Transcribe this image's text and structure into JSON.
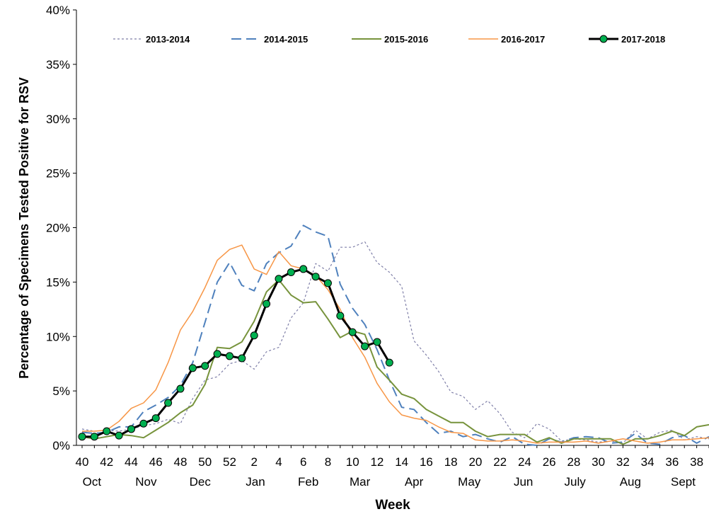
{
  "chart_data": {
    "type": "line",
    "xlabel": "Week",
    "ylabel": "Percentage of Specimens Tested Positive for RSV",
    "ylim": [
      0,
      40
    ],
    "yticks": [
      "0%",
      "5%",
      "10%",
      "15%",
      "20%",
      "25%",
      "30%",
      "35%",
      "40%"
    ],
    "grid": false,
    "legend_position": "top",
    "weeks": [
      40,
      41,
      42,
      43,
      44,
      45,
      46,
      47,
      48,
      49,
      50,
      51,
      52,
      1,
      2,
      3,
      4,
      5,
      6,
      7,
      8,
      9,
      10,
      11,
      12,
      13,
      14,
      15,
      16,
      17,
      18,
      19,
      20,
      21,
      22,
      23,
      24,
      25,
      26,
      27,
      28,
      29,
      30,
      31,
      32,
      33,
      34,
      35,
      36,
      37,
      38,
      39
    ],
    "xtick_labels": [
      "40",
      "42",
      "44",
      "46",
      "48",
      "50",
      "52",
      "2",
      "4",
      "6",
      "8",
      "10",
      "12",
      "14",
      "16",
      "18",
      "20",
      "22",
      "24",
      "26",
      "28",
      "30",
      "32",
      "34",
      "36",
      "38"
    ],
    "month_labels": [
      {
        "label": "Oct",
        "week_index": 0.8
      },
      {
        "label": "Nov",
        "week_index": 5.2
      },
      {
        "label": "Dec",
        "week_index": 9.6
      },
      {
        "label": "Jan",
        "week_index": 14.1
      },
      {
        "label": "Feb",
        "week_index": 18.4
      },
      {
        "label": "Mar",
        "week_index": 22.6
      },
      {
        "label": "Apr",
        "week_index": 27.0
      },
      {
        "label": "May",
        "week_index": 31.5
      },
      {
        "label": "Jun",
        "week_index": 35.9
      },
      {
        "label": "July",
        "week_index": 40.1
      },
      {
        "label": "Aug",
        "week_index": 44.6
      },
      {
        "label": "Sept",
        "week_index": 48.9
      }
    ],
    "series": [
      {
        "name": "2013-2014",
        "color": "#7f7fa8",
        "style": "dotted",
        "values": [
          1.5,
          1.3,
          1.4,
          1.3,
          1.5,
          1.8,
          2.0,
          2.4,
          2.0,
          4.3,
          6.0,
          6.3,
          7.5,
          7.8,
          7.0,
          8.6,
          9.0,
          11.7,
          13.1,
          16.7,
          16.0,
          18.2,
          18.2,
          18.7,
          16.8,
          15.9,
          14.6,
          9.6,
          8.3,
          6.8,
          4.9,
          4.5,
          3.3,
          4.1,
          2.9,
          1.2,
          0.7,
          2.0,
          1.5,
          0.4,
          0.6,
          0.5,
          0.3,
          0.4,
          0.2,
          1.4,
          0.6,
          1.2,
          1.4,
          0.5,
          0.8,
          0.6
        ]
      },
      {
        "name": "2014-2015",
        "color": "#4f81bd",
        "style": "dashed",
        "values": [
          1.2,
          1.1,
          1.2,
          1.7,
          1.7,
          3.1,
          3.7,
          4.4,
          5.5,
          7.6,
          11.3,
          15.0,
          16.8,
          14.7,
          14.2,
          16.7,
          17.7,
          18.3,
          20.2,
          19.6,
          19.2,
          14.8,
          12.6,
          11.1,
          8.8,
          6.0,
          3.5,
          3.3,
          2.1,
          1.1,
          1.3,
          0.8,
          1.0,
          0.6,
          0.3,
          0.8,
          0.1,
          0.0,
          0.6,
          0.3,
          0.7,
          0.8,
          0.7,
          0.2,
          0.3,
          1.1,
          0.2,
          0.1,
          0.7,
          0.9,
          0.2,
          0.8
        ]
      },
      {
        "name": "2015-2016",
        "color": "#77933c",
        "style": "solid",
        "values": [
          0.8,
          0.6,
          0.8,
          1.0,
          0.9,
          0.7,
          1.4,
          2.1,
          3.0,
          3.7,
          5.6,
          9.0,
          8.9,
          9.5,
          11.4,
          14.1,
          15.2,
          13.8,
          13.1,
          13.2,
          11.6,
          9.9,
          10.5,
          10.2,
          7.2,
          6.0,
          4.7,
          4.3,
          3.3,
          2.7,
          2.1,
          2.1,
          1.3,
          0.8,
          1.0,
          1.0,
          1.0,
          0.3,
          0.7,
          0.2,
          0.6,
          0.6,
          0.6,
          0.6,
          0.1,
          0.6,
          0.6,
          0.9,
          1.3,
          0.9,
          1.7,
          1.9
        ]
      },
      {
        "name": "2016-2017",
        "color": "#f79646",
        "style": "solid",
        "values": [
          1.3,
          1.3,
          1.4,
          2.2,
          3.4,
          3.9,
          5.1,
          7.6,
          10.6,
          12.3,
          14.5,
          17.0,
          18.0,
          18.4,
          16.2,
          15.7,
          17.8,
          16.5,
          16.2,
          15.6,
          14.3,
          12.5,
          9.9,
          8.1,
          5.7,
          4.0,
          2.8,
          2.5,
          2.3,
          1.7,
          1.2,
          1.1,
          0.5,
          0.4,
          0.4,
          0.5,
          0.4,
          0.2,
          0.3,
          0.3,
          0.3,
          0.4,
          0.2,
          0.4,
          0.6,
          0.4,
          0.2,
          0.3,
          0.5,
          0.5,
          0.6,
          0.7
        ]
      },
      {
        "name": "2017-2018",
        "color": "#000000",
        "marker_color": "#00b050",
        "style": "solid-markers",
        "values": [
          0.8,
          0.8,
          1.3,
          0.9,
          1.5,
          2.0,
          2.5,
          3.9,
          5.2,
          7.1,
          7.3,
          8.4,
          8.2,
          8.0,
          10.1,
          13.0,
          15.3,
          15.9,
          16.2,
          15.5,
          14.9,
          11.9,
          10.4,
          9.1,
          9.5,
          7.6
        ]
      }
    ]
  }
}
